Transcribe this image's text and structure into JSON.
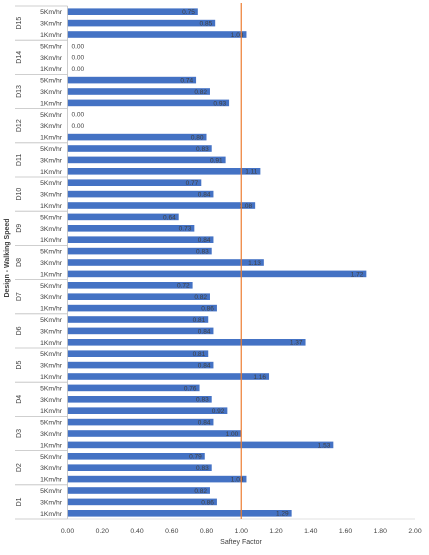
{
  "chart_data": {
    "type": "bar",
    "orientation": "horizontal",
    "xlabel": "Saftey Factor",
    "ylabel": "Design - Walking Speed",
    "xlim": [
      0,
      2
    ],
    "x_ticks": [
      "0.00",
      "0.20",
      "0.40",
      "0.60",
      "0.80",
      "1.00",
      "1.20",
      "1.40",
      "1.60",
      "1.80",
      "2.00"
    ],
    "reference_line": {
      "value": 1.0,
      "color": "#ED7D31"
    },
    "bar_color": "#4472C4",
    "grid": false,
    "legend": "none",
    "groups": [
      {
        "name": "D15",
        "speeds": [
          "5Km/hr",
          "3Km/hr",
          "1Km/hr"
        ],
        "values": [
          0.75,
          0.85,
          1.03
        ],
        "labels": [
          "0.75",
          "0.85",
          "1.03"
        ]
      },
      {
        "name": "D14",
        "speeds": [
          "5Km/hr",
          "3Km/hr",
          "1Km/hr"
        ],
        "values": [
          0,
          0,
          0
        ],
        "labels": [
          "0.00",
          "0.00",
          "0.00"
        ]
      },
      {
        "name": "D13",
        "speeds": [
          "5Km/hr",
          "3Km/hr",
          "1Km/hr"
        ],
        "values": [
          0.74,
          0.82,
          0.93
        ],
        "labels": [
          "0.74",
          "0.82",
          "0.93"
        ]
      },
      {
        "name": "D12",
        "speeds": [
          "5Km/hr",
          "3Km/hr",
          "1Km/hr"
        ],
        "values": [
          0,
          0,
          0.8
        ],
        "labels": [
          "0.00",
          "0.00",
          "0.80"
        ]
      },
      {
        "name": "D11",
        "speeds": [
          "5Km/hr",
          "3Km/hr",
          "1Km/hr"
        ],
        "values": [
          0.83,
          0.91,
          1.11
        ],
        "labels": [
          "0.83",
          "0.91",
          "1.11"
        ]
      },
      {
        "name": "D10",
        "speeds": [
          "5Km/hr",
          "3Km/hr",
          "1Km/hr"
        ],
        "values": [
          0.77,
          0.84,
          1.08
        ],
        "labels": [
          "0.77",
          "0.84",
          "1.08"
        ]
      },
      {
        "name": "D9",
        "speeds": [
          "5Km/hr",
          "3Km/hr",
          "1Km/hr"
        ],
        "values": [
          0.64,
          0.73,
          0.84
        ],
        "labels": [
          "0.64",
          "0.73",
          "0.84"
        ]
      },
      {
        "name": "D8",
        "speeds": [
          "5Km/hr",
          "3Km/hr",
          "1Km/hr"
        ],
        "values": [
          0.83,
          1.13,
          1.72
        ],
        "labels": [
          "0.83",
          "1.13",
          "1.72"
        ]
      },
      {
        "name": "D7",
        "speeds": [
          "5Km/hr",
          "3Km/hr",
          "1Km/hr"
        ],
        "values": [
          0.72,
          0.82,
          0.86
        ],
        "labels": [
          "0.72",
          "0.82",
          "0.86"
        ]
      },
      {
        "name": "D6",
        "speeds": [
          "5Km/hr",
          "3Km/hr",
          "1Km/hr"
        ],
        "values": [
          0.81,
          0.84,
          1.37
        ],
        "labels": [
          "0.81",
          "0.84",
          "1.37"
        ]
      },
      {
        "name": "D5",
        "speeds": [
          "5Km/hr",
          "3Km/hr",
          "1Km/hr"
        ],
        "values": [
          0.81,
          0.84,
          1.16
        ],
        "labels": [
          "0.81",
          "0.84",
          "1.16"
        ]
      },
      {
        "name": "D4",
        "speeds": [
          "5Km/hr",
          "3Km/hr",
          "1Km/hr"
        ],
        "values": [
          0.76,
          0.83,
          0.92
        ],
        "labels": [
          "0.76",
          "0.83",
          "0.92"
        ]
      },
      {
        "name": "D3",
        "speeds": [
          "5Km/hr",
          "3Km/hr",
          "1Km/hr"
        ],
        "values": [
          0.84,
          1.0,
          1.53
        ],
        "labels": [
          "0.84",
          "1.00",
          "1.53"
        ]
      },
      {
        "name": "D2",
        "speeds": [
          "5Km/hr",
          "3Km/hr",
          "1Km/hr"
        ],
        "values": [
          0.79,
          0.83,
          1.03
        ],
        "labels": [
          "0.79",
          "0.83",
          "1.03"
        ]
      },
      {
        "name": "D1",
        "speeds": [
          "5Km/hr",
          "3Km/hr",
          "1Km/hr"
        ],
        "values": [
          0.82,
          0.86,
          1.29
        ],
        "labels": [
          "0.82",
          "0.86",
          "1.29"
        ]
      }
    ]
  }
}
